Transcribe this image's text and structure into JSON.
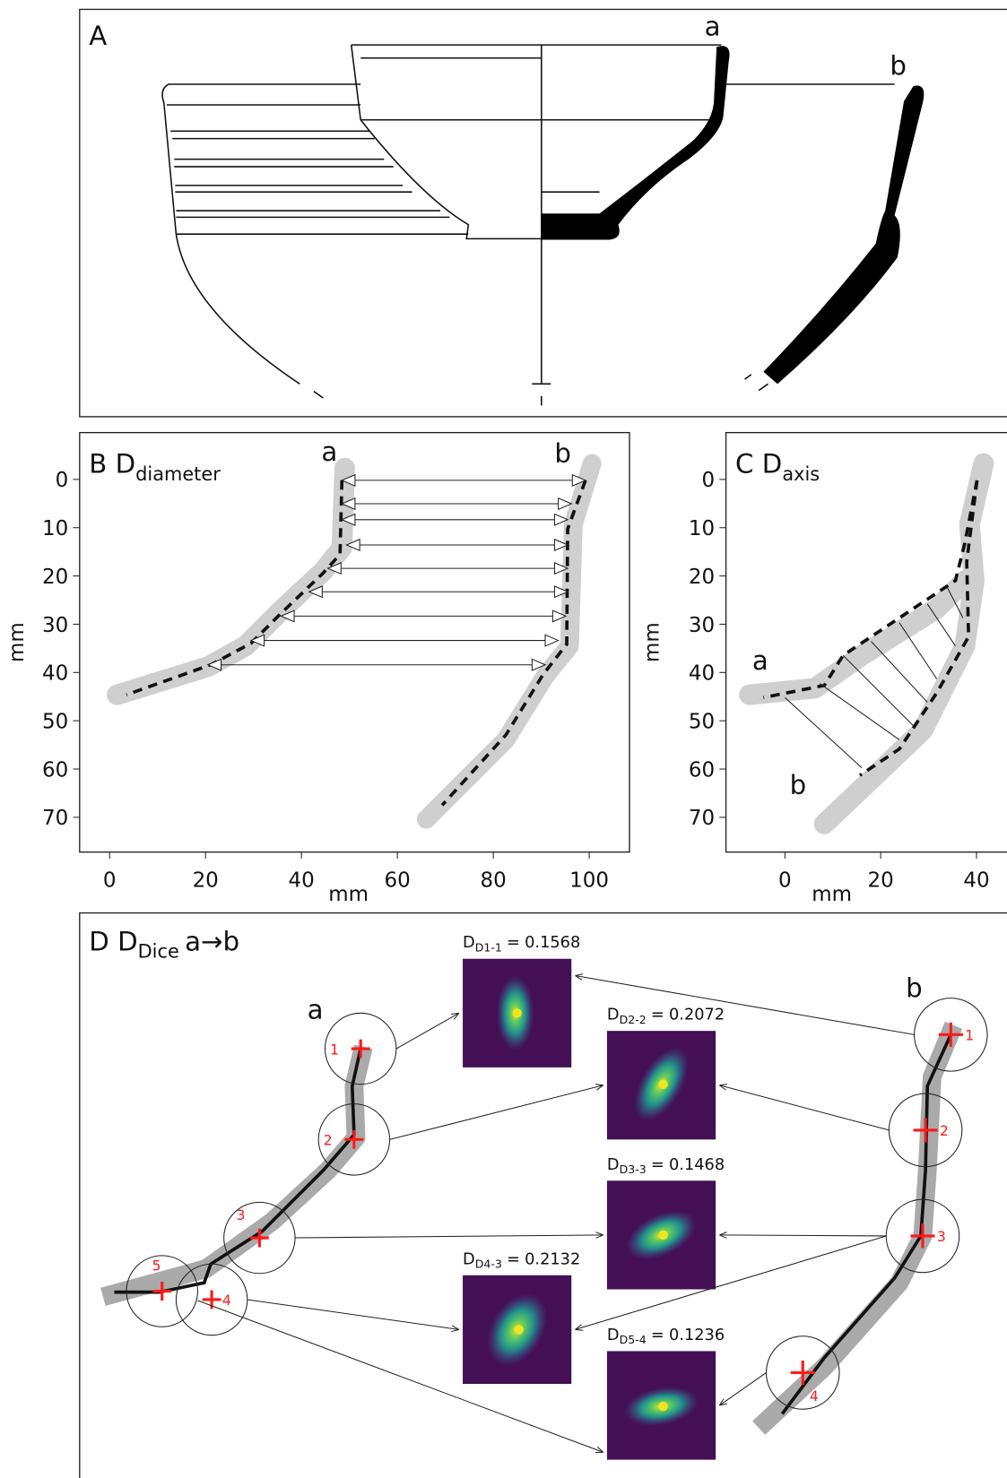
{
  "panels": {
    "A": {
      "label": "A",
      "profile_labels": [
        "a",
        "b"
      ]
    },
    "B": {
      "label": "B",
      "title_main": "D",
      "title_sub": "diameter",
      "point_labels": [
        "a",
        "b"
      ],
      "x_axis_label": "mm",
      "y_axis_label": "mm",
      "xlim": [
        -6.25,
        108.4
      ],
      "ylim": [
        77.2,
        -9.7
      ],
      "xticks": [
        0,
        20,
        40,
        60,
        80,
        100
      ],
      "yticks": [
        0,
        10,
        20,
        30,
        40,
        50,
        60,
        70
      ]
    },
    "C": {
      "label": "C",
      "title_main": "D",
      "title_sub": "axis",
      "point_labels": [
        "a",
        "b"
      ],
      "x_axis_label": "mm",
      "y_axis_label": "mm",
      "xlim": [
        -12.3,
        45
      ],
      "ylim": [
        77.2,
        -9.7
      ],
      "xticks": [
        0,
        20,
        40
      ],
      "yticks": [
        0,
        10,
        20,
        30,
        40,
        50,
        60,
        70
      ]
    },
    "D": {
      "label": "D",
      "title_main": "D",
      "title_sub": "Dice",
      "title_suffix": "a→b",
      "point_labels": [
        "a",
        "b"
      ],
      "a_points": [
        "1",
        "2",
        "3",
        "4",
        "5"
      ],
      "b_points": [
        "1",
        "2",
        "3",
        "4"
      ],
      "relation": "=",
      "comparisons": [
        {
          "label_main": "D",
          "label_sub": "D1-1",
          "value": 0.1568
        },
        {
          "label_main": "D",
          "label_sub": "D2-2",
          "value": 0.2072
        },
        {
          "label_main": "D",
          "label_sub": "D3-3",
          "value": 0.1468
        },
        {
          "label_main": "D",
          "label_sub": "D4-3",
          "value": 0.2132
        },
        {
          "label_main": "D",
          "label_sub": "D5-4",
          "value": 0.1236
        }
      ]
    }
  }
}
